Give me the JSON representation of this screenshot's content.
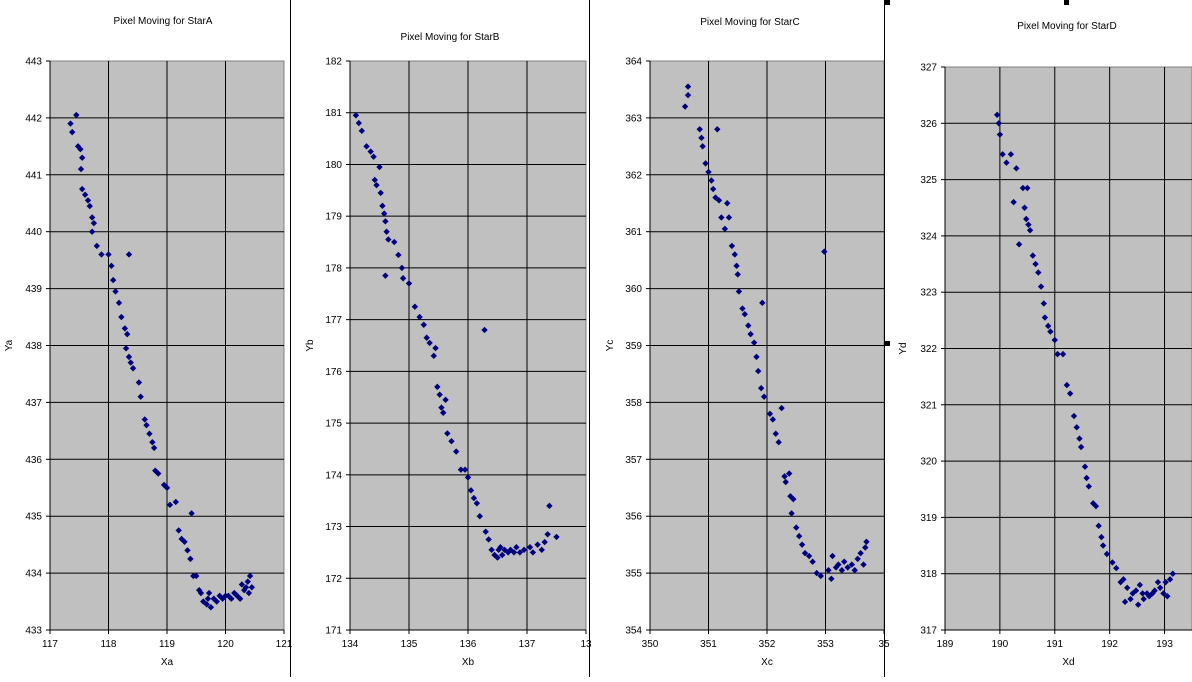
{
  "chart_data": [
    {
      "type": "scatter",
      "title": "Pixel Moving for StarA",
      "xlabel": "Xa",
      "ylabel": "Ya",
      "xlim": [
        117,
        121
      ],
      "ylim": [
        433,
        443
      ],
      "xticks": [
        "117",
        "118",
        "119",
        "120",
        "121"
      ],
      "yticks": [
        "433",
        "434",
        "435",
        "436",
        "437",
        "438",
        "439",
        "440",
        "441",
        "442",
        "443"
      ],
      "grid": true,
      "plot_bg": "#c0c0c0",
      "marker_color": "#00007f",
      "points": [
        [
          117.35,
          441.9
        ],
        [
          117.38,
          441.75
        ],
        [
          117.45,
          442.05
        ],
        [
          117.48,
          441.5
        ],
        [
          117.52,
          441.45
        ],
        [
          117.55,
          441.3
        ],
        [
          117.53,
          441.1
        ],
        [
          117.55,
          440.75
        ],
        [
          117.6,
          440.65
        ],
        [
          117.65,
          440.55
        ],
        [
          117.68,
          440.45
        ],
        [
          117.72,
          440.25
        ],
        [
          117.75,
          440.15
        ],
        [
          117.72,
          440.0
        ],
        [
          117.8,
          439.75
        ],
        [
          117.88,
          439.6
        ],
        [
          118.0,
          439.6
        ],
        [
          118.05,
          439.4
        ],
        [
          118.08,
          439.15
        ],
        [
          118.12,
          438.95
        ],
        [
          118.18,
          438.75
        ],
        [
          118.22,
          438.5
        ],
        [
          118.28,
          438.3
        ],
        [
          118.32,
          438.2
        ],
        [
          118.3,
          437.95
        ],
        [
          118.35,
          437.8
        ],
        [
          118.38,
          437.7
        ],
        [
          118.42,
          437.6
        ],
        [
          118.35,
          439.6
        ],
        [
          118.52,
          437.35
        ],
        [
          118.55,
          437.1
        ],
        [
          118.62,
          436.7
        ],
        [
          118.65,
          436.6
        ],
        [
          118.7,
          436.45
        ],
        [
          118.75,
          436.3
        ],
        [
          118.78,
          436.2
        ],
        [
          118.8,
          435.8
        ],
        [
          118.85,
          435.75
        ],
        [
          118.95,
          435.55
        ],
        [
          119.0,
          435.5
        ],
        [
          119.05,
          435.2
        ],
        [
          119.15,
          435.25
        ],
        [
          119.2,
          434.75
        ],
        [
          119.25,
          434.6
        ],
        [
          119.3,
          434.55
        ],
        [
          119.35,
          434.4
        ],
        [
          119.4,
          434.25
        ],
        [
          119.42,
          435.05
        ],
        [
          119.45,
          433.95
        ],
        [
          119.5,
          433.95
        ],
        [
          119.55,
          433.7
        ],
        [
          119.58,
          433.65
        ],
        [
          119.62,
          433.5
        ],
        [
          119.68,
          433.45
        ],
        [
          119.7,
          433.55
        ],
        [
          119.72,
          433.65
        ],
        [
          119.75,
          433.4
        ],
        [
          119.8,
          433.55
        ],
        [
          119.85,
          433.5
        ],
        [
          119.9,
          433.6
        ],
        [
          119.95,
          433.55
        ],
        [
          120.0,
          433.6
        ],
        [
          120.05,
          433.6
        ],
        [
          120.1,
          433.55
        ],
        [
          120.15,
          433.65
        ],
        [
          120.2,
          433.6
        ],
        [
          120.25,
          433.55
        ],
        [
          120.28,
          433.8
        ],
        [
          120.32,
          433.7
        ],
        [
          120.35,
          433.75
        ],
        [
          120.38,
          433.85
        ],
        [
          120.42,
          433.95
        ],
        [
          120.4,
          433.65
        ],
        [
          120.45,
          433.75
        ]
      ]
    },
    {
      "type": "scatter",
      "title": "Pixel Moving for StarB",
      "xlabel": "Xb",
      "ylabel": "Yb",
      "xlim": [
        134,
        138
      ],
      "ylim": [
        171,
        182
      ],
      "xticks": [
        "134",
        "135",
        "136",
        "137",
        "13"
      ],
      "yticks": [
        "171",
        "172",
        "173",
        "174",
        "175",
        "176",
        "177",
        "178",
        "179",
        "180",
        "181",
        "182"
      ],
      "grid": true,
      "plot_bg": "#c0c0c0",
      "marker_color": "#00007f",
      "points": [
        [
          134.1,
          180.95
        ],
        [
          134.15,
          180.8
        ],
        [
          134.2,
          180.65
        ],
        [
          134.28,
          180.35
        ],
        [
          134.35,
          180.25
        ],
        [
          134.4,
          180.15
        ],
        [
          134.42,
          179.7
        ],
        [
          134.45,
          179.6
        ],
        [
          134.5,
          179.95
        ],
        [
          134.52,
          179.45
        ],
        [
          134.55,
          179.2
        ],
        [
          134.58,
          179.05
        ],
        [
          134.6,
          178.9
        ],
        [
          134.62,
          178.7
        ],
        [
          134.65,
          178.55
        ],
        [
          134.6,
          177.85
        ],
        [
          134.75,
          178.5
        ],
        [
          134.82,
          178.25
        ],
        [
          134.88,
          178.0
        ],
        [
          134.9,
          177.8
        ],
        [
          135.0,
          177.7
        ],
        [
          135.1,
          177.25
        ],
        [
          135.18,
          177.05
        ],
        [
          135.25,
          176.9
        ],
        [
          135.3,
          176.65
        ],
        [
          135.35,
          176.55
        ],
        [
          135.42,
          176.3
        ],
        [
          135.45,
          176.45
        ],
        [
          135.48,
          175.7
        ],
        [
          135.52,
          175.55
        ],
        [
          135.55,
          175.3
        ],
        [
          135.58,
          175.2
        ],
        [
          135.62,
          175.45
        ],
        [
          135.65,
          174.8
        ],
        [
          135.72,
          174.65
        ],
        [
          135.8,
          174.45
        ],
        [
          135.88,
          174.1
        ],
        [
          135.95,
          174.1
        ],
        [
          136.0,
          173.95
        ],
        [
          136.05,
          173.7
        ],
        [
          136.1,
          173.55
        ],
        [
          136.15,
          173.45
        ],
        [
          136.2,
          173.2
        ],
        [
          136.28,
          176.8
        ],
        [
          136.3,
          172.9
        ],
        [
          136.35,
          172.75
        ],
        [
          136.4,
          172.55
        ],
        [
          136.45,
          172.45
        ],
        [
          136.5,
          172.4
        ],
        [
          136.52,
          172.55
        ],
        [
          136.55,
          172.6
        ],
        [
          136.58,
          172.45
        ],
        [
          136.62,
          172.55
        ],
        [
          136.68,
          172.5
        ],
        [
          136.72,
          172.55
        ],
        [
          136.78,
          172.5
        ],
        [
          136.82,
          172.6
        ],
        [
          136.88,
          172.5
        ],
        [
          136.95,
          172.55
        ],
        [
          137.05,
          172.6
        ],
        [
          137.1,
          172.5
        ],
        [
          137.18,
          172.65
        ],
        [
          137.25,
          172.55
        ],
        [
          137.3,
          172.7
        ],
        [
          137.35,
          172.85
        ],
        [
          137.38,
          173.4
        ],
        [
          137.5,
          172.8
        ]
      ]
    },
    {
      "type": "scatter",
      "title": "Pixel Moving for StarC",
      "xlabel": "Xc",
      "ylabel": "Yc",
      "xlim": [
        350,
        354
      ],
      "ylim": [
        354,
        364
      ],
      "xticks": [
        "350",
        "351",
        "352",
        "353",
        "35"
      ],
      "yticks": [
        "354",
        "355",
        "356",
        "357",
        "358",
        "359",
        "360",
        "361",
        "362",
        "363",
        "364"
      ],
      "grid": true,
      "plot_bg": "#c0c0c0",
      "marker_color": "#00007f",
      "points": [
        [
          350.6,
          363.2
        ],
        [
          350.65,
          363.55
        ],
        [
          350.65,
          363.4
        ],
        [
          350.85,
          362.8
        ],
        [
          350.88,
          362.65
        ],
        [
          350.9,
          362.5
        ],
        [
          350.95,
          362.2
        ],
        [
          351.0,
          362.05
        ],
        [
          351.05,
          361.9
        ],
        [
          351.08,
          361.75
        ],
        [
          351.12,
          361.6
        ],
        [
          351.18,
          361.55
        ],
        [
          351.15,
          362.8
        ],
        [
          351.22,
          361.25
        ],
        [
          351.28,
          361.05
        ],
        [
          351.32,
          361.5
        ],
        [
          351.35,
          361.25
        ],
        [
          351.4,
          360.75
        ],
        [
          351.45,
          360.6
        ],
        [
          351.48,
          360.4
        ],
        [
          351.5,
          360.25
        ],
        [
          351.52,
          359.95
        ],
        [
          351.58,
          359.65
        ],
        [
          351.62,
          359.55
        ],
        [
          351.68,
          359.35
        ],
        [
          351.72,
          359.2
        ],
        [
          351.78,
          359.05
        ],
        [
          351.82,
          358.8
        ],
        [
          351.85,
          358.55
        ],
        [
          351.9,
          358.25
        ],
        [
          351.92,
          359.75
        ],
        [
          351.95,
          358.1
        ],
        [
          352.05,
          357.8
        ],
        [
          352.1,
          357.7
        ],
        [
          352.15,
          357.45
        ],
        [
          352.2,
          357.3
        ],
        [
          352.25,
          357.9
        ],
        [
          352.3,
          356.7
        ],
        [
          352.32,
          356.6
        ],
        [
          352.38,
          356.75
        ],
        [
          352.4,
          356.35
        ],
        [
          352.42,
          356.05
        ],
        [
          352.45,
          356.3
        ],
        [
          352.5,
          355.8
        ],
        [
          352.55,
          355.65
        ],
        [
          352.6,
          355.5
        ],
        [
          352.65,
          355.35
        ],
        [
          352.72,
          355.3
        ],
        [
          352.78,
          355.2
        ],
        [
          352.85,
          355.0
        ],
        [
          352.92,
          354.95
        ],
        [
          352.98,
          360.65
        ],
        [
          353.05,
          355.05
        ],
        [
          353.1,
          354.9
        ],
        [
          353.12,
          355.3
        ],
        [
          353.18,
          355.1
        ],
        [
          353.22,
          355.15
        ],
        [
          353.28,
          355.05
        ],
        [
          353.32,
          355.2
        ],
        [
          353.38,
          355.1
        ],
        [
          353.45,
          355.15
        ],
        [
          353.5,
          355.05
        ],
        [
          353.55,
          355.25
        ],
        [
          353.6,
          355.35
        ],
        [
          353.65,
          355.15
        ],
        [
          353.68,
          355.45
        ],
        [
          353.7,
          355.55
        ]
      ]
    },
    {
      "type": "scatter",
      "title": "Pixel Moving for StarD",
      "xlabel": "Xd",
      "ylabel": "Yd",
      "xlim": [
        189,
        193.5
      ],
      "ylim": [
        317,
        327
      ],
      "xticks": [
        "189",
        "190",
        "191",
        "192",
        "193"
      ],
      "yticks": [
        "317",
        "318",
        "319",
        "320",
        "321",
        "322",
        "323",
        "324",
        "325",
        "326",
        "327"
      ],
      "grid": true,
      "plot_bg": "#c0c0c0",
      "marker_color": "#00007f",
      "points": [
        [
          189.95,
          326.15
        ],
        [
          189.98,
          326.0
        ],
        [
          190.0,
          325.8
        ],
        [
          190.05,
          325.45
        ],
        [
          190.12,
          325.3
        ],
        [
          190.2,
          325.45
        ],
        [
          190.25,
          324.6
        ],
        [
          190.3,
          325.2
        ],
        [
          190.35,
          323.85
        ],
        [
          190.42,
          324.85
        ],
        [
          190.45,
          324.5
        ],
        [
          190.48,
          324.3
        ],
        [
          190.5,
          324.85
        ],
        [
          190.52,
          324.2
        ],
        [
          190.55,
          324.1
        ],
        [
          190.6,
          323.65
        ],
        [
          190.65,
          323.5
        ],
        [
          190.7,
          323.35
        ],
        [
          190.75,
          323.1
        ],
        [
          190.8,
          322.8
        ],
        [
          190.82,
          322.55
        ],
        [
          190.88,
          322.4
        ],
        [
          190.92,
          322.3
        ],
        [
          191.0,
          322.15
        ],
        [
          191.05,
          321.9
        ],
        [
          191.15,
          321.9
        ],
        [
          191.22,
          321.35
        ],
        [
          191.28,
          321.2
        ],
        [
          191.35,
          320.8
        ],
        [
          191.4,
          320.6
        ],
        [
          191.45,
          320.4
        ],
        [
          191.48,
          320.25
        ],
        [
          191.55,
          319.9
        ],
        [
          191.58,
          319.7
        ],
        [
          191.62,
          319.55
        ],
        [
          191.7,
          319.25
        ],
        [
          191.75,
          319.2
        ],
        [
          191.8,
          318.85
        ],
        [
          191.85,
          318.65
        ],
        [
          191.88,
          318.5
        ],
        [
          191.95,
          318.35
        ],
        [
          192.05,
          318.2
        ],
        [
          192.12,
          318.1
        ],
        [
          192.2,
          317.85
        ],
        [
          192.25,
          317.9
        ],
        [
          192.28,
          317.5
        ],
        [
          192.32,
          317.75
        ],
        [
          192.38,
          317.55
        ],
        [
          192.42,
          317.65
        ],
        [
          192.48,
          317.7
        ],
        [
          192.52,
          317.45
        ],
        [
          192.55,
          317.8
        ],
        [
          192.6,
          317.65
        ],
        [
          192.62,
          317.55
        ],
        [
          192.68,
          317.65
        ],
        [
          192.72,
          317.6
        ],
        [
          192.78,
          317.65
        ],
        [
          192.82,
          317.7
        ],
        [
          192.88,
          317.85
        ],
        [
          192.92,
          317.75
        ],
        [
          192.98,
          317.65
        ],
        [
          193.02,
          317.85
        ],
        [
          193.05,
          317.6
        ],
        [
          193.1,
          317.9
        ],
        [
          193.15,
          318.0
        ]
      ]
    }
  ]
}
